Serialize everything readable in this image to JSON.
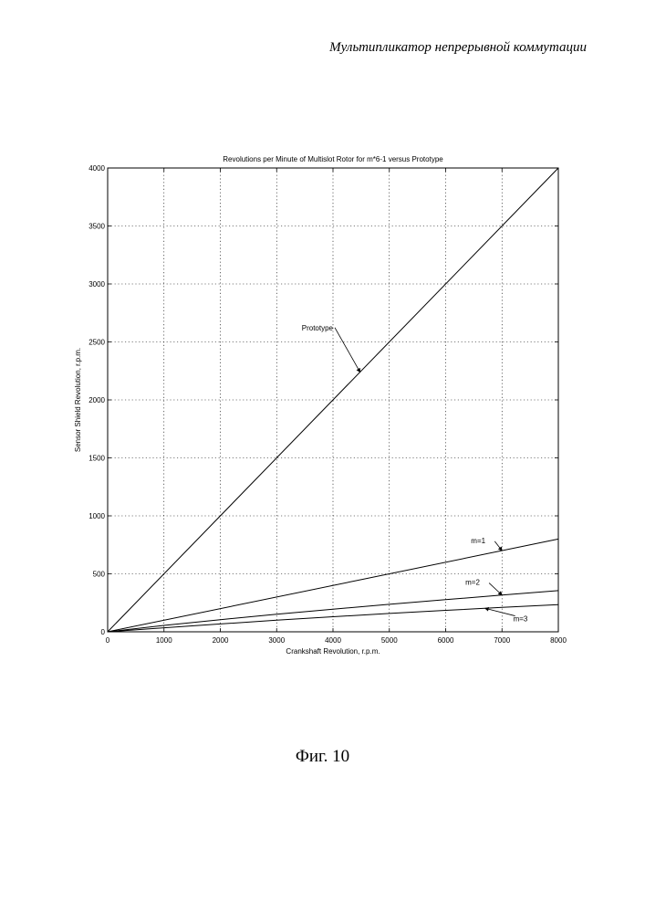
{
  "header": {
    "text": "Мультипликатор непрерывной коммутации"
  },
  "caption": {
    "text": "Фиг. 10"
  },
  "chart_data": {
    "type": "line",
    "title": "Revolutions per Minute of Multislot Rotor for m*6-1 versus Prototype",
    "xlabel": "Crankshaft Revolution, r.p.m.",
    "ylabel": "Sensor Shield Revolution, r.p.m.",
    "xlim": [
      0,
      8000
    ],
    "ylim": [
      0,
      4000
    ],
    "xticks": [
      0,
      1000,
      2000,
      3000,
      4000,
      5000,
      6000,
      7000,
      8000
    ],
    "yticks": [
      0,
      500,
      1000,
      1500,
      2000,
      2500,
      3000,
      3500,
      4000
    ],
    "grid": true,
    "series": [
      {
        "name": "Prototype",
        "x": [
          0,
          8000
        ],
        "y": [
          0,
          4000
        ],
        "label_x": 4000,
        "label_y": 2600
      },
      {
        "name": "m=1",
        "x": [
          0,
          8000
        ],
        "y": [
          0,
          800
        ],
        "label_x": 6450,
        "label_y": 765
      },
      {
        "name": "m=2",
        "x": [
          0,
          1000,
          2000,
          3000,
          4000,
          5000,
          6000,
          7000,
          8000
        ],
        "y": [
          0,
          55,
          105,
          152,
          195,
          237,
          277,
          317,
          355
        ],
        "label_x": 6350,
        "label_y": 405
      },
      {
        "name": "m=3",
        "x": [
          0,
          1000,
          2000,
          3000,
          4000,
          5000,
          6000,
          7000,
          8000
        ],
        "y": [
          0,
          35,
          68,
          100,
          130,
          158,
          185,
          210,
          235
        ],
        "label_x": 7200,
        "label_y": 90
      }
    ]
  }
}
